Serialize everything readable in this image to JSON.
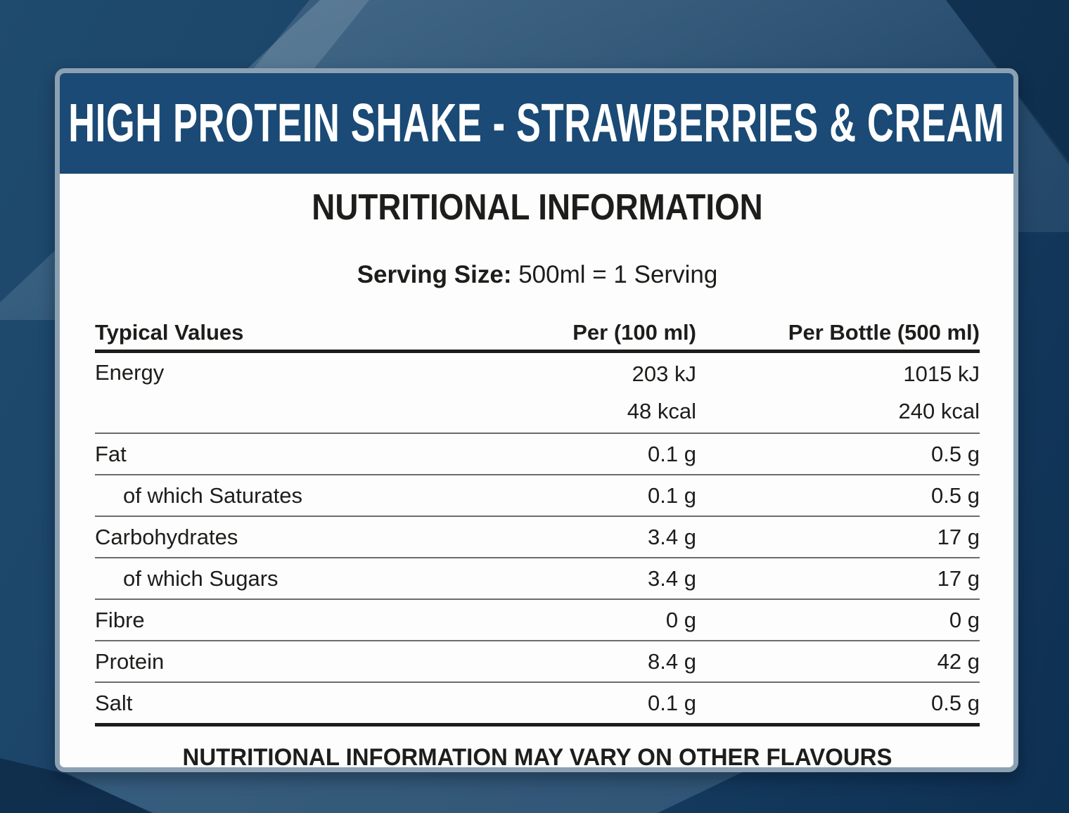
{
  "title": "HIGH PROTEIN SHAKE - STRAWBERRIES & CREAM",
  "section": {
    "heading": "NUTRITIONAL INFORMATION",
    "serving_label": "Serving Size:",
    "serving_value": "500ml = 1 Serving"
  },
  "table": {
    "columns": [
      "Typical Values",
      "Per (100 ml)",
      "Per Bottle (500 ml)"
    ],
    "rows": [
      {
        "label": "Energy",
        "per100": "203 kJ",
        "per_bottle": "1015 kJ",
        "per100_line2": "48 kcal",
        "per_bottle_line2": "240 kcal",
        "indent": false
      },
      {
        "label": "Fat",
        "per100": "0.1 g",
        "per_bottle": "0.5 g",
        "indent": false
      },
      {
        "label": "of which Saturates",
        "per100": "0.1 g",
        "per_bottle": "0.5 g",
        "indent": true
      },
      {
        "label": "Carbohydrates",
        "per100": "3.4 g",
        "per_bottle": "17 g",
        "indent": false
      },
      {
        "label": "of which Sugars",
        "per100": "3.4 g",
        "per_bottle": "17 g",
        "indent": true
      },
      {
        "label": "Fibre",
        "per100": "0 g",
        "per_bottle": "0 g",
        "indent": false
      },
      {
        "label": "Protein",
        "per100": "8.4 g",
        "per_bottle": "42 g",
        "indent": false
      },
      {
        "label": "Salt",
        "per100": "0.1 g",
        "per_bottle": "0.5 g",
        "indent": false
      }
    ]
  },
  "footnote": "NUTRITIONAL INFORMATION MAY VARY ON OTHER FLAVOURS",
  "colors": {
    "header_bg": "#1a4a75",
    "card_border": "#8ba1b2",
    "background_base": "#143a5e",
    "text": "#1d1d1b",
    "title_text": "#ffffff"
  }
}
